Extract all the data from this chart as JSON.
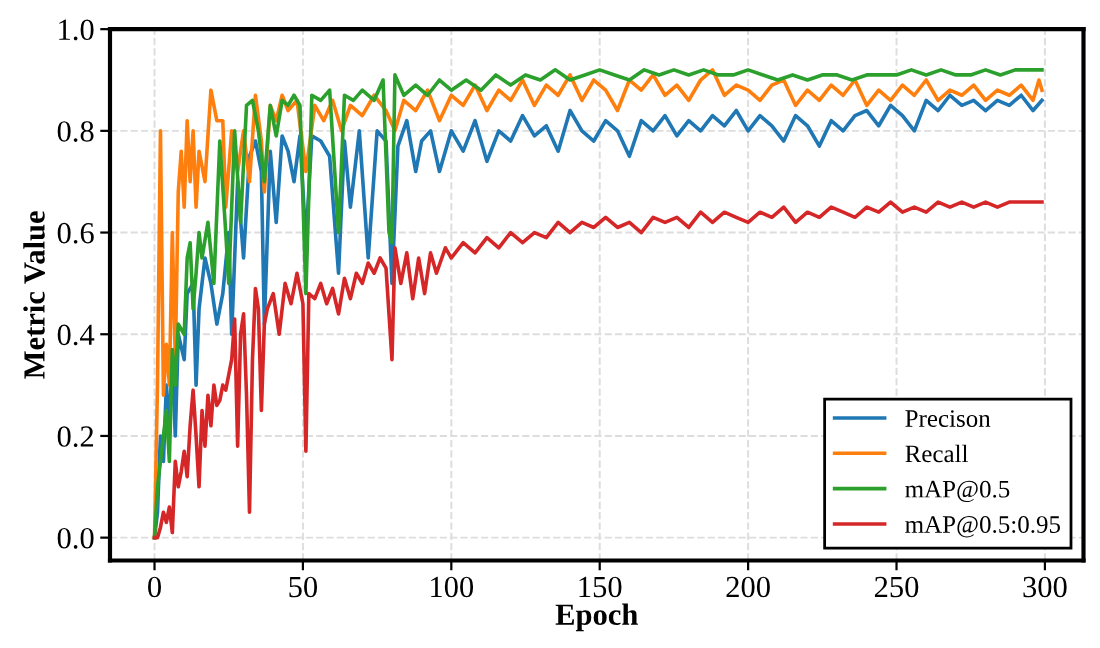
{
  "chart_data": {
    "type": "line",
    "xlabel": "Epoch",
    "ylabel": "Metric Value",
    "xlim": [
      -15,
      313
    ],
    "ylim": [
      -0.045,
      1.0
    ],
    "xticks": [
      0,
      50,
      100,
      150,
      200,
      250,
      300
    ],
    "yticks": [
      {
        "value": 0,
        "label": "0.0"
      },
      0.2,
      0.4,
      0.6,
      0.8,
      {
        "value": 1,
        "label": "1.0"
      }
    ],
    "grid": true,
    "legend": "bottom right",
    "marker": "none",
    "line_style": "solid",
    "series": [
      {
        "name": "Precison",
        "color": "#1f77b4",
        "x": [
          0,
          1,
          2,
          3,
          4,
          5,
          6,
          7,
          8,
          10,
          11,
          13,
          14,
          15,
          17,
          19,
          21,
          23,
          25,
          26,
          28,
          30,
          32,
          34,
          36,
          37,
          39,
          41,
          43,
          45,
          47,
          49,
          51,
          53,
          56,
          59,
          62,
          64,
          66,
          69,
          72,
          75,
          78,
          80,
          82,
          85,
          88,
          90,
          93,
          96,
          100,
          104,
          108,
          112,
          116,
          120,
          124,
          128,
          132,
          136,
          140,
          144,
          148,
          152,
          156,
          160,
          164,
          168,
          172,
          176,
          180,
          184,
          188,
          192,
          196,
          200,
          204,
          208,
          212,
          216,
          220,
          224,
          228,
          232,
          236,
          240,
          244,
          248,
          252,
          256,
          260,
          264,
          268,
          272,
          276,
          280,
          284,
          288,
          292,
          296,
          299
        ],
        "values": [
          0.0,
          0.05,
          0.2,
          0.15,
          0.3,
          0.22,
          0.35,
          0.2,
          0.4,
          0.35,
          0.48,
          0.5,
          0.3,
          0.45,
          0.55,
          0.5,
          0.42,
          0.48,
          0.6,
          0.4,
          0.7,
          0.55,
          0.75,
          0.78,
          0.72,
          0.42,
          0.76,
          0.62,
          0.79,
          0.76,
          0.7,
          0.79,
          0.58,
          0.79,
          0.78,
          0.75,
          0.52,
          0.78,
          0.65,
          0.8,
          0.55,
          0.8,
          0.78,
          0.5,
          0.77,
          0.82,
          0.72,
          0.78,
          0.8,
          0.72,
          0.8,
          0.76,
          0.82,
          0.74,
          0.8,
          0.78,
          0.83,
          0.79,
          0.81,
          0.76,
          0.84,
          0.8,
          0.78,
          0.82,
          0.8,
          0.75,
          0.82,
          0.8,
          0.83,
          0.79,
          0.82,
          0.8,
          0.83,
          0.81,
          0.84,
          0.8,
          0.83,
          0.81,
          0.78,
          0.83,
          0.81,
          0.77,
          0.82,
          0.8,
          0.83,
          0.84,
          0.81,
          0.85,
          0.83,
          0.8,
          0.86,
          0.84,
          0.87,
          0.85,
          0.86,
          0.84,
          0.86,
          0.85,
          0.87,
          0.84,
          0.86
        ]
      },
      {
        "name": "Recall",
        "color": "#ff7f0e",
        "x": [
          0,
          1,
          2,
          3,
          4,
          5,
          6,
          7,
          8,
          9,
          10,
          11,
          12,
          13,
          14,
          15,
          17,
          19,
          21,
          23,
          24,
          26,
          28,
          30,
          32,
          34,
          36,
          37,
          39,
          41,
          43,
          45,
          48,
          51,
          54,
          57,
          60,
          63,
          66,
          70,
          74,
          78,
          81,
          84,
          88,
          92,
          96,
          100,
          104,
          108,
          112,
          116,
          120,
          124,
          128,
          132,
          136,
          140,
          144,
          148,
          152,
          156,
          160,
          164,
          168,
          172,
          176,
          180,
          184,
          188,
          192,
          196,
          200,
          204,
          208,
          212,
          216,
          220,
          224,
          228,
          232,
          236,
          240,
          244,
          248,
          252,
          256,
          260,
          264,
          268,
          272,
          276,
          280,
          284,
          288,
          292,
          296,
          298,
          299
        ],
        "values": [
          0.0,
          0.3,
          0.8,
          0.28,
          0.38,
          0.3,
          0.6,
          0.35,
          0.68,
          0.76,
          0.65,
          0.82,
          0.7,
          0.8,
          0.65,
          0.76,
          0.7,
          0.88,
          0.82,
          0.82,
          0.65,
          0.8,
          0.72,
          0.8,
          0.7,
          0.87,
          0.78,
          0.68,
          0.85,
          0.82,
          0.87,
          0.84,
          0.86,
          0.72,
          0.85,
          0.82,
          0.86,
          0.8,
          0.85,
          0.83,
          0.87,
          0.84,
          0.8,
          0.86,
          0.84,
          0.88,
          0.82,
          0.87,
          0.85,
          0.89,
          0.84,
          0.88,
          0.86,
          0.9,
          0.85,
          0.89,
          0.87,
          0.91,
          0.86,
          0.9,
          0.88,
          0.84,
          0.9,
          0.88,
          0.91,
          0.87,
          0.89,
          0.86,
          0.9,
          0.92,
          0.87,
          0.89,
          0.88,
          0.86,
          0.89,
          0.9,
          0.85,
          0.88,
          0.86,
          0.89,
          0.87,
          0.9,
          0.85,
          0.88,
          0.86,
          0.89,
          0.87,
          0.9,
          0.86,
          0.88,
          0.87,
          0.89,
          0.86,
          0.88,
          0.87,
          0.89,
          0.86,
          0.9,
          0.88
        ]
      },
      {
        "name": "mAP@0.5",
        "color": "#2ca02c",
        "x": [
          0,
          1,
          2,
          3,
          4,
          5,
          6,
          7,
          8,
          10,
          11,
          12,
          13,
          14,
          15,
          16,
          18,
          20,
          22,
          24,
          25,
          27,
          29,
          31,
          33,
          35,
          37,
          39,
          41,
          43,
          45,
          47,
          49,
          51,
          53,
          56,
          59,
          62,
          64,
          67,
          70,
          74,
          77,
          79,
          80,
          81,
          84,
          88,
          92,
          96,
          100,
          105,
          110,
          115,
          120,
          125,
          130,
          135,
          140,
          145,
          150,
          155,
          160,
          165,
          170,
          175,
          180,
          185,
          190,
          195,
          200,
          205,
          210,
          215,
          220,
          225,
          230,
          235,
          240,
          245,
          250,
          255,
          260,
          265,
          270,
          275,
          280,
          285,
          290,
          295,
          299
        ],
        "values": [
          0.0,
          0.1,
          0.15,
          0.2,
          0.25,
          0.15,
          0.37,
          0.3,
          0.42,
          0.4,
          0.55,
          0.58,
          0.45,
          0.52,
          0.6,
          0.55,
          0.62,
          0.5,
          0.78,
          0.6,
          0.5,
          0.8,
          0.62,
          0.85,
          0.86,
          0.8,
          0.7,
          0.85,
          0.79,
          0.86,
          0.85,
          0.87,
          0.85,
          0.48,
          0.87,
          0.86,
          0.88,
          0.6,
          0.87,
          0.86,
          0.88,
          0.86,
          0.9,
          0.6,
          0.58,
          0.91,
          0.87,
          0.89,
          0.87,
          0.9,
          0.88,
          0.9,
          0.88,
          0.91,
          0.89,
          0.91,
          0.9,
          0.92,
          0.9,
          0.91,
          0.92,
          0.91,
          0.9,
          0.92,
          0.91,
          0.92,
          0.91,
          0.92,
          0.91,
          0.91,
          0.92,
          0.91,
          0.9,
          0.91,
          0.9,
          0.91,
          0.91,
          0.9,
          0.91,
          0.91,
          0.91,
          0.92,
          0.91,
          0.92,
          0.91,
          0.91,
          0.92,
          0.91,
          0.92,
          0.92,
          0.92
        ]
      },
      {
        "name": "mAP@0.5:0.95",
        "color": "#d62728",
        "x": [
          0,
          1,
          2,
          3,
          4,
          5,
          6,
          7,
          8,
          9,
          10,
          11,
          12,
          13,
          14,
          15,
          16,
          17,
          18,
          19,
          20,
          21,
          22,
          23,
          24,
          25,
          26,
          27,
          28,
          29,
          30,
          31,
          32,
          33,
          34,
          35,
          36,
          37,
          38,
          40,
          42,
          44,
          46,
          48,
          50,
          51,
          52,
          54,
          56,
          58,
          60,
          62,
          64,
          66,
          68,
          70,
          72,
          74,
          76,
          78,
          80,
          81,
          83,
          85,
          87,
          89,
          91,
          93,
          95,
          98,
          100,
          104,
          108,
          112,
          116,
          120,
          124,
          128,
          132,
          136,
          140,
          144,
          148,
          152,
          156,
          160,
          164,
          168,
          172,
          176,
          180,
          184,
          188,
          192,
          196,
          200,
          204,
          208,
          212,
          216,
          220,
          224,
          228,
          232,
          236,
          240,
          244,
          248,
          252,
          256,
          260,
          264,
          268,
          272,
          276,
          280,
          284,
          288,
          292,
          296,
          299
        ],
        "values": [
          0.0,
          0.0,
          0.02,
          0.05,
          0.03,
          0.06,
          0.01,
          0.15,
          0.1,
          0.13,
          0.17,
          0.12,
          0.22,
          0.29,
          0.2,
          0.1,
          0.25,
          0.18,
          0.28,
          0.22,
          0.3,
          0.26,
          0.27,
          0.3,
          0.29,
          0.32,
          0.35,
          0.43,
          0.18,
          0.4,
          0.44,
          0.28,
          0.05,
          0.35,
          0.49,
          0.45,
          0.25,
          0.42,
          0.45,
          0.48,
          0.4,
          0.5,
          0.46,
          0.52,
          0.46,
          0.17,
          0.48,
          0.47,
          0.5,
          0.46,
          0.49,
          0.44,
          0.51,
          0.47,
          0.52,
          0.5,
          0.54,
          0.52,
          0.55,
          0.53,
          0.35,
          0.57,
          0.5,
          0.56,
          0.47,
          0.55,
          0.48,
          0.56,
          0.52,
          0.57,
          0.55,
          0.58,
          0.56,
          0.59,
          0.57,
          0.6,
          0.58,
          0.6,
          0.59,
          0.62,
          0.6,
          0.62,
          0.61,
          0.63,
          0.61,
          0.62,
          0.6,
          0.63,
          0.62,
          0.63,
          0.61,
          0.64,
          0.62,
          0.64,
          0.63,
          0.62,
          0.64,
          0.63,
          0.65,
          0.62,
          0.64,
          0.63,
          0.65,
          0.64,
          0.63,
          0.65,
          0.64,
          0.66,
          0.64,
          0.65,
          0.64,
          0.66,
          0.65,
          0.66,
          0.65,
          0.66,
          0.65,
          0.66,
          0.66,
          0.66,
          0.66
        ]
      }
    ]
  }
}
